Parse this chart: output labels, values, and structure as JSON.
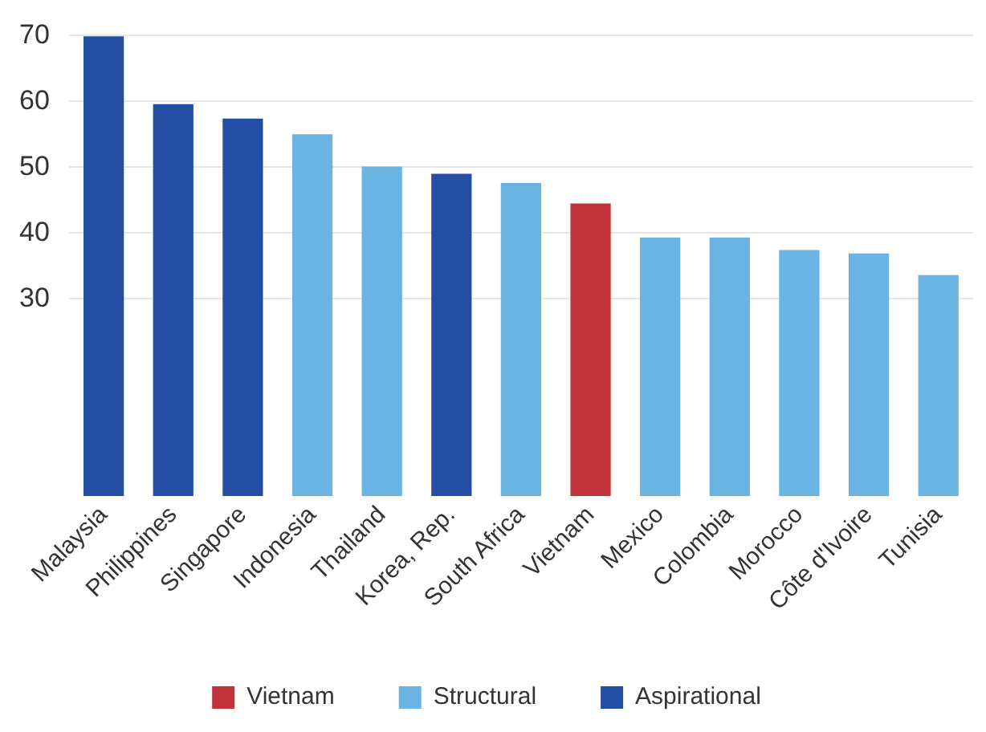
{
  "chart_data": {
    "type": "bar",
    "categories": [
      "Malaysia",
      "Philippines",
      "Singapore",
      "Indonesia",
      "Thailand",
      "Korea, Rep.",
      "South Africa",
      "Vietnam",
      "Mexico",
      "Colombia",
      "Morocco",
      "Côte d'Ivoire",
      "Tunisia"
    ],
    "series": [
      {
        "name": "Vietnam",
        "color": "#c1323b",
        "values": [
          null,
          null,
          null,
          null,
          null,
          null,
          null,
          44.5,
          null,
          null,
          null,
          null,
          null
        ]
      },
      {
        "name": "Structural",
        "color": "#69b4e2",
        "values": [
          null,
          null,
          null,
          55.0,
          50.1,
          null,
          47.6,
          null,
          39.3,
          39.3,
          37.4,
          36.9,
          33.6
        ]
      },
      {
        "name": "Aspirational",
        "color": "#244ea3",
        "values": [
          69.9,
          59.6,
          57.4,
          null,
          null,
          49.0,
          null,
          null,
          null,
          null,
          null,
          null,
          null
        ]
      }
    ],
    "ylim": [
      0,
      70
    ],
    "yticks": [
      30,
      40,
      50,
      60,
      70
    ],
    "grid": "y",
    "legend": "bottom"
  }
}
